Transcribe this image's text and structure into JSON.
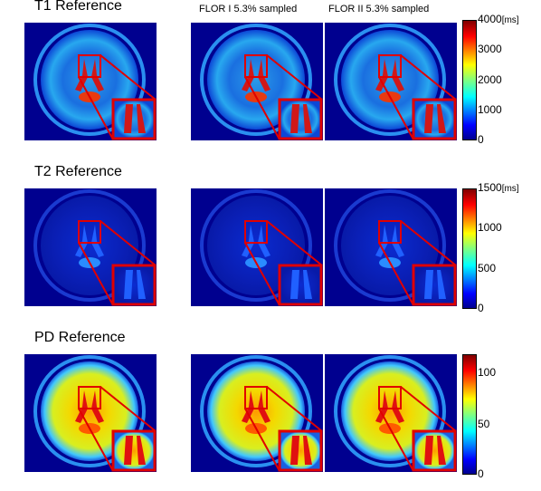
{
  "row_titles": {
    "t1": "T1 Reference",
    "t2": "T2 Reference",
    "pd": "PD Reference"
  },
  "column_titles": {
    "flor1": "FLOR I 5.3% sampled",
    "flor2": "FLOR II 5.3% sampled"
  },
  "colorbars": {
    "t1": {
      "ticks": [
        "4000",
        "3000",
        "2000",
        "1000",
        "0"
      ],
      "unit": "[ms]"
    },
    "t2": {
      "ticks": [
        "1500",
        "1000",
        "500",
        "0"
      ],
      "unit": "[ms]"
    },
    "pd": {
      "ticks": [
        "100",
        "50",
        "0"
      ],
      "unit": ""
    }
  },
  "colors": {
    "background_blue": "#00008f",
    "inset_frame": "#e00000",
    "jet": [
      "#00008f",
      "#0000ff",
      "#0080ff",
      "#00ffff",
      "#80ff80",
      "#ffff00",
      "#ff8000",
      "#ff0000",
      "#800000"
    ]
  }
}
